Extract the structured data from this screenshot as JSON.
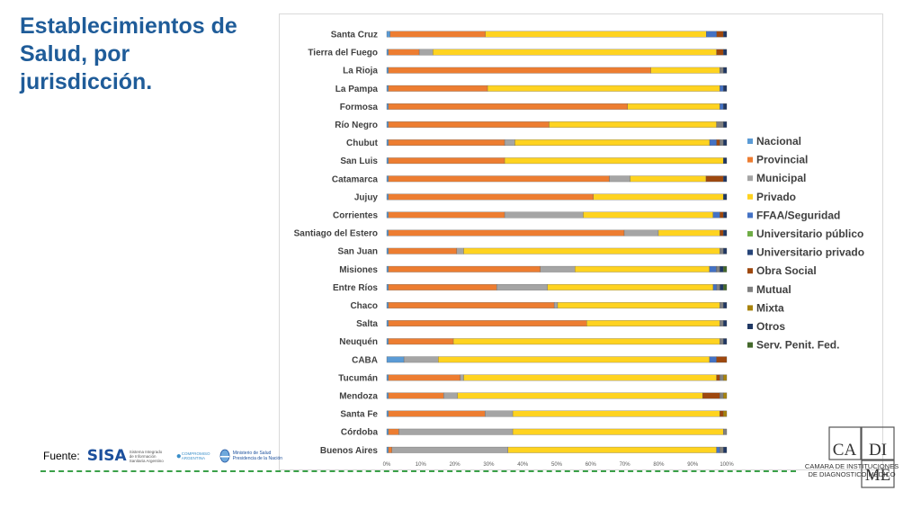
{
  "title": "Establecimientos de Salud, por jurisdicción.",
  "footer": {
    "fuente_label": "Fuente:",
    "sisa_mark": "SISA",
    "sisa_text": "Sistema Integrado de Información Sanitaria Argentino",
    "compromiso_mark": "COMPROMISO",
    "compromiso_text": "ARGENTINA",
    "ministerio_text": "Ministerio de Salud Presidencia de la Nación"
  },
  "cadime": {
    "logo_letters_top_left": "CA",
    "logo_letters_top_right": "DI",
    "logo_letters_bottom": "ME",
    "caption": "CAMARA DE INSTITUCIONES DE DIAGNOSTICO MEDICO"
  },
  "colors": {
    "Nacional": "#5b9bd5",
    "Provincial": "#ed7d31",
    "Municipal": "#a5a5a5",
    "Privado": "#ffd320",
    "FFAA/Seguridad": "#4472c4",
    "Universitario público": "#70ad47",
    "Universitario privado": "#264478",
    "Obra Social": "#9e480e",
    "Mutual": "#808080",
    "Mixta": "#a8830c",
    "Otros": "#203864",
    "Serv. Penit. Fed.": "#43682b"
  },
  "chart_data": {
    "type": "bar",
    "orientation": "horizontal",
    "stacked": "percent",
    "categories": [
      "Santa Cruz",
      "Tierra del Fuego",
      "La Rioja",
      "La Pampa",
      "Formosa",
      "Río Negro",
      "Chubut",
      "San Luis",
      "Catamarca",
      "Jujuy",
      "Corrientes",
      "Santiago del Estero",
      "San Juan",
      "Misiones",
      "Entre Ríos",
      "Chaco",
      "Salta",
      "Neuquén",
      "CABA",
      "Tucumán",
      "Mendoza",
      "Santa Fe",
      "Córdoba",
      "Buenos Aires"
    ],
    "x_ticks": [
      "0%",
      "10%",
      "20%",
      "30%",
      "40%",
      "50%",
      "60%",
      "70%",
      "80%",
      "90%",
      "100%"
    ],
    "xlim": [
      0,
      100
    ],
    "legend_position": "right",
    "series": [
      {
        "name": "Nacional",
        "values": [
          1,
          0.5,
          0.5,
          0.5,
          0.5,
          0.5,
          0.5,
          0.5,
          0.5,
          0.5,
          0.5,
          0.5,
          0.5,
          0.5,
          0.5,
          0.5,
          0.5,
          0.5,
          5,
          0.5,
          0.5,
          0.5,
          0.5,
          0.5
        ]
      },
      {
        "name": "Provincial",
        "values": [
          28,
          9,
          76,
          29,
          70,
          47,
          34,
          34,
          64,
          60,
          34,
          69,
          20,
          44,
          32,
          48,
          58,
          19,
          0,
          21,
          16,
          28,
          3,
          1
        ]
      },
      {
        "name": "Municipal",
        "values": [
          0,
          4,
          0,
          0,
          0,
          0,
          3,
          0,
          6,
          0,
          23,
          10,
          2,
          10,
          15,
          1,
          0,
          0,
          10,
          1,
          4,
          8,
          33,
          34
        ]
      },
      {
        "name": "Privado",
        "values": [
          65,
          83,
          20,
          68,
          27,
          49,
          57,
          64,
          22,
          38,
          38,
          18,
          75,
          39,
          49,
          47,
          39,
          78,
          79,
          74,
          71,
          60,
          61,
          61
        ]
      },
      {
        "name": "FFAA/Seguridad",
        "values": [
          3,
          0,
          0,
          1,
          1,
          0,
          2,
          0,
          0,
          0,
          2,
          0,
          0,
          2,
          1,
          0,
          0,
          0,
          2,
          0,
          0,
          0,
          0,
          1
        ]
      },
      {
        "name": "Universitario público",
        "values": [
          0,
          0,
          0,
          0,
          0,
          0,
          0,
          0,
          0,
          0,
          0,
          0,
          0,
          0,
          0,
          0,
          0,
          0,
          0,
          0,
          0,
          0,
          0,
          0
        ]
      },
      {
        "name": "Universitario privado",
        "values": [
          0,
          0,
          0,
          0,
          0,
          0,
          0,
          0,
          0,
          0,
          0,
          0,
          0,
          0,
          0,
          0,
          0,
          0,
          0,
          0,
          0,
          0,
          0,
          0
        ]
      },
      {
        "name": "Obra Social",
        "values": [
          2,
          2,
          0,
          0,
          0,
          0,
          1,
          0,
          5,
          0,
          1,
          1,
          0,
          0,
          0,
          0,
          0,
          0,
          3,
          1,
          5,
          1,
          0,
          0
        ]
      },
      {
        "name": "Mutual",
        "values": [
          0,
          0,
          1,
          0,
          0,
          2,
          1,
          0,
          0,
          0,
          0,
          0,
          1,
          1,
          1,
          1,
          1,
          1,
          0,
          1,
          1,
          0,
          1,
          1
        ]
      },
      {
        "name": "Mixta",
        "values": [
          0,
          0,
          0,
          0,
          0,
          0,
          0,
          0,
          0,
          0,
          0,
          0,
          0,
          0,
          0,
          0,
          0,
          0,
          0,
          1,
          1,
          1,
          0,
          0
        ]
      },
      {
        "name": "Otros",
        "values": [
          1,
          1,
          1,
          1,
          1,
          1,
          1,
          1,
          1,
          1,
          1,
          1,
          1,
          1,
          1,
          1,
          1,
          1,
          0,
          0,
          0,
          0,
          0,
          1
        ]
      },
      {
        "name": "Serv. Penit. Fed.",
        "values": [
          0,
          0,
          0,
          0,
          0,
          0,
          0,
          0,
          0,
          0,
          0,
          0,
          0,
          1,
          1,
          0,
          0,
          0,
          0,
          0,
          0,
          0,
          0,
          0
        ]
      }
    ]
  }
}
